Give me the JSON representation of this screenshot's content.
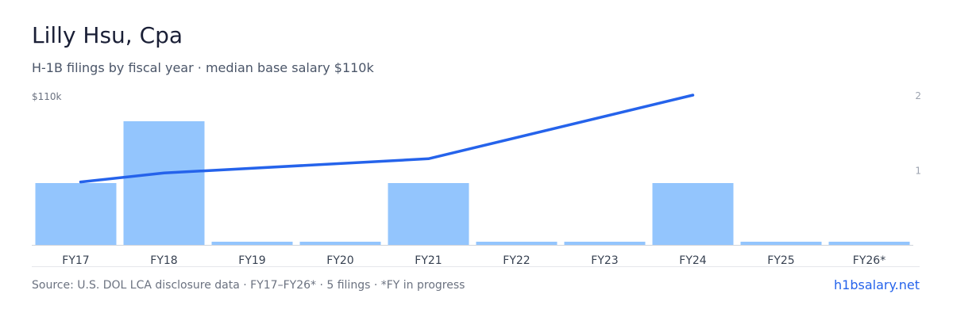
{
  "header": {
    "title": "Lilly Hsu, Cpa",
    "subtitle": "H-1B filings by fiscal year · median base salary $110k"
  },
  "footer": {
    "source": "Source: U.S. DOL LCA disclosure data · FY17–FY26* · 5 filings · *FY in progress",
    "brand": "h1bsalary.net"
  },
  "colors": {
    "bar": "#93c5fd",
    "line": "#2563eb",
    "axis": "#d1d5db"
  },
  "chart_data": {
    "type": "bar",
    "categories": [
      "FY17",
      "FY18",
      "FY19",
      "FY20",
      "FY21",
      "FY22",
      "FY23",
      "FY24",
      "FY25",
      "FY26*"
    ],
    "series": [
      {
        "type": "bar",
        "axis": "left",
        "values": [
          1,
          2,
          0,
          0,
          1,
          0,
          0,
          1,
          0,
          0
        ]
      },
      {
        "type": "line",
        "axis": "right",
        "values": [
          null,
          null,
          null,
          null,
          null,
          null,
          null,
          null,
          null,
          null
        ],
        "points": [
          {
            "category": "FY17",
            "value": 0.84
          },
          {
            "category": "FY18",
            "value": 0.96
          },
          {
            "category": "FY21",
            "value": 1.15
          },
          {
            "category": "FY24",
            "value": 2.0
          }
        ]
      }
    ],
    "left_axis_label": "$110k",
    "right_ticks": [
      "2",
      "1"
    ],
    "right_ylim": [
      0,
      2
    ],
    "bar_ylim": [
      0,
      2
    ],
    "grid": false,
    "legend": "none"
  }
}
